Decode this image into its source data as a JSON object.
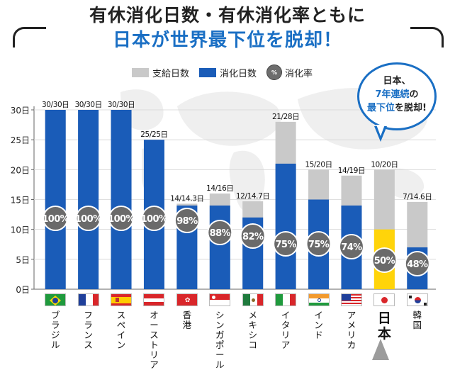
{
  "title_line1": "有休消化日数・有休消化率ともに",
  "title_line2": "日本が世界最下位を脱却！",
  "legend": {
    "granted": "支給日数",
    "used": "消化日数",
    "rate_icon": "%",
    "rate": "消化率"
  },
  "callout": {
    "line1": "日本、",
    "line2": "7年連続",
    "line3_a": "の",
    "line3_b": "最下位",
    "line3_c": "を脱却!"
  },
  "chart_data": {
    "type": "bar",
    "title": "",
    "xlabel": "",
    "ylabel": "",
    "ylim": [
      0,
      30
    ],
    "y_ticks": [
      "0日",
      "5日",
      "10日",
      "15日",
      "20日",
      "25日",
      "30日"
    ],
    "colors": {
      "granted": "#c9c9c9",
      "used": "#1a5cb8",
      "highlight": "#ffd40a",
      "rate_badge": "#6a6a6a"
    },
    "categories": [
      "ブラジル",
      "フランス",
      "スペイン",
      "オーストリア",
      "香港",
      "シンガポール",
      "メキシコ",
      "イタリア",
      "インド",
      "アメリカ",
      "日本",
      "韓国"
    ],
    "series": [
      {
        "name": "支給日数",
        "values": [
          30,
          30,
          30,
          25,
          14.3,
          16,
          14.7,
          28,
          20,
          19,
          20,
          14.6
        ]
      },
      {
        "name": "消化日数",
        "values": [
          30,
          30,
          30,
          25,
          14,
          14,
          12,
          21,
          15,
          14,
          10,
          7
        ]
      }
    ],
    "bar_labels": [
      "30/30日",
      "30/30日",
      "30/30日",
      "25/25日",
      "14/14.3日",
      "14/16日",
      "12/14.7日",
      "21/28日",
      "15/20日",
      "14/19日",
      "10/20日",
      "7/14.6日"
    ],
    "rates": [
      "100%",
      "100%",
      "100%",
      "100%",
      "98%",
      "88%",
      "82%",
      "75%",
      "75%",
      "74%",
      "50%",
      "48%"
    ],
    "highlight_category": "日本"
  }
}
